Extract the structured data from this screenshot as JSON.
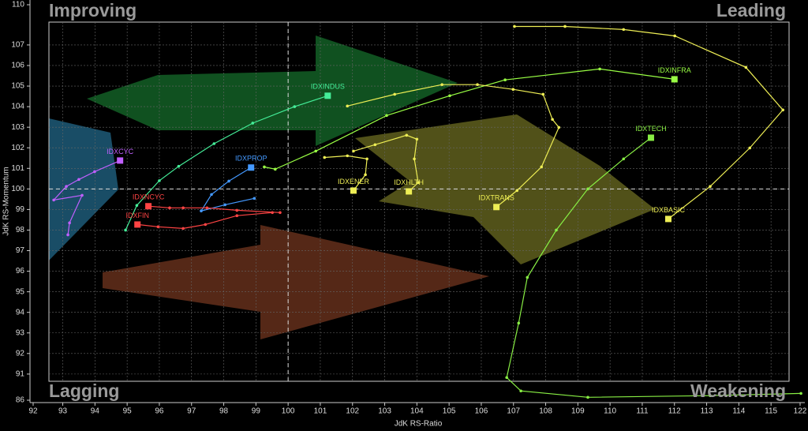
{
  "chart_data": {
    "type": "rrg",
    "x_label": "JdK RS-Ratio",
    "y_label": "JdK RS-Momentum",
    "quadrants": {
      "top_left": "Improving",
      "top_right": "Leading",
      "bottom_left": "Lagging",
      "bottom_right": "Weakening"
    },
    "xlim": [
      92.57,
      115.56
    ],
    "ylim": [
      90.65,
      108.11
    ],
    "xticks": [
      93,
      94,
      95,
      96,
      97,
      98,
      99,
      100,
      101,
      102,
      103,
      104,
      105,
      106,
      107,
      108,
      109,
      110,
      111,
      112,
      113,
      114,
      115
    ],
    "yticks": [
      91,
      92,
      93,
      94,
      95,
      96,
      97,
      98,
      99,
      100,
      101,
      102,
      103,
      104,
      105,
      106,
      107
    ],
    "x_outer_ticks": [
      92,
      122
    ],
    "y_outer_ticks": [
      110,
      86
    ],
    "reference_lines": {
      "x": 100,
      "y": 100
    },
    "grid": true,
    "series": [
      {
        "name": "IDXCYC",
        "color": "#c060ff",
        "x": [
          93.16,
          93.21,
          93.6,
          92.72,
          93.11,
          93.5,
          93.99,
          94.78
        ],
        "values": [
          97.77,
          98.35,
          99.69,
          99.46,
          100.12,
          100.46,
          100.84,
          101.38
        ]
      },
      {
        "name": "IDXINDUS",
        "color": "#44ee99",
        "x": [
          94.95,
          95.3,
          96.0,
          96.6,
          97.7,
          98.9,
          100.2,
          101.23
        ],
        "values": [
          98.0,
          99.2,
          100.4,
          101.1,
          102.2,
          103.2,
          104.0,
          104.53
        ]
      },
      {
        "name": "IDXINFRA",
        "color": "#99ff44",
        "x": [
          99.26,
          99.6,
          100.86,
          103.06,
          105.02,
          106.74,
          109.68,
          112.0
        ],
        "values": [
          101.07,
          100.96,
          101.84,
          103.57,
          104.53,
          105.3,
          105.83,
          105.33
        ]
      },
      {
        "name": "IDXTECH",
        "color": "#88ee44",
        "x": [
          115.93,
          113.11,
          109.31,
          107.23,
          106.79,
          107.16,
          107.43,
          108.33,
          109.31,
          110.42,
          111.27
        ],
        "values": [
          90.06,
          89.95,
          89.87,
          90.18,
          90.83,
          93.48,
          95.7,
          98.0,
          100.0,
          101.46,
          102.49
        ]
      },
      {
        "name": "IDXBASIC",
        "color": "#eeee55",
        "x": [
          107.03,
          108.6,
          110.42,
          112.01,
          114.22,
          115.37,
          114.34,
          113.11,
          111.81
        ],
        "values": [
          107.9,
          107.9,
          107.75,
          107.44,
          105.91,
          103.84,
          101.99,
          100.12,
          98.54
        ]
      },
      {
        "name": "IDXTRANS",
        "color": "#eeee55",
        "x": [
          101.84,
          103.31,
          104.78,
          105.88,
          106.99,
          107.92,
          108.21,
          108.41,
          107.87,
          107.11,
          106.47
        ],
        "values": [
          104.03,
          104.6,
          105.07,
          105.07,
          104.84,
          104.6,
          103.38,
          102.99,
          101.07,
          99.92,
          99.12
        ]
      },
      {
        "name": "IDXENER",
        "color": "#eeee55",
        "x": [
          101.13,
          101.84,
          102.45,
          102.4,
          102.03
        ],
        "values": [
          101.53,
          101.61,
          101.46,
          100.69,
          99.92
        ]
      },
      {
        "name": "IDXHLTH",
        "color": "#eeee55",
        "x": [
          102.03,
          102.7,
          103.68,
          104.0,
          103.92,
          104.04,
          103.75
        ],
        "values": [
          101.84,
          102.15,
          102.61,
          102.42,
          101.46,
          100.31,
          99.88
        ]
      },
      {
        "name": "IDXPROP",
        "color": "#4499ff",
        "x": [
          98.95,
          98.04,
          97.3,
          97.62,
          98.16,
          98.85
        ],
        "values": [
          99.54,
          99.23,
          98.93,
          99.73,
          100.38,
          101.04
        ]
      },
      {
        "name": "IDXNCYC",
        "color": "#ff4444",
        "x": [
          99.75,
          98.41,
          97.48,
          96.74,
          96.32,
          95.66
        ],
        "values": [
          98.85,
          98.96,
          99.08,
          99.08,
          99.08,
          99.16
        ]
      },
      {
        "name": "IDXFIN",
        "color": "#ff4444",
        "x": [
          99.51,
          98.41,
          97.43,
          96.74,
          95.96,
          95.32
        ],
        "values": [
          98.85,
          98.7,
          98.27,
          98.08,
          98.16,
          98.27
        ]
      }
    ]
  }
}
